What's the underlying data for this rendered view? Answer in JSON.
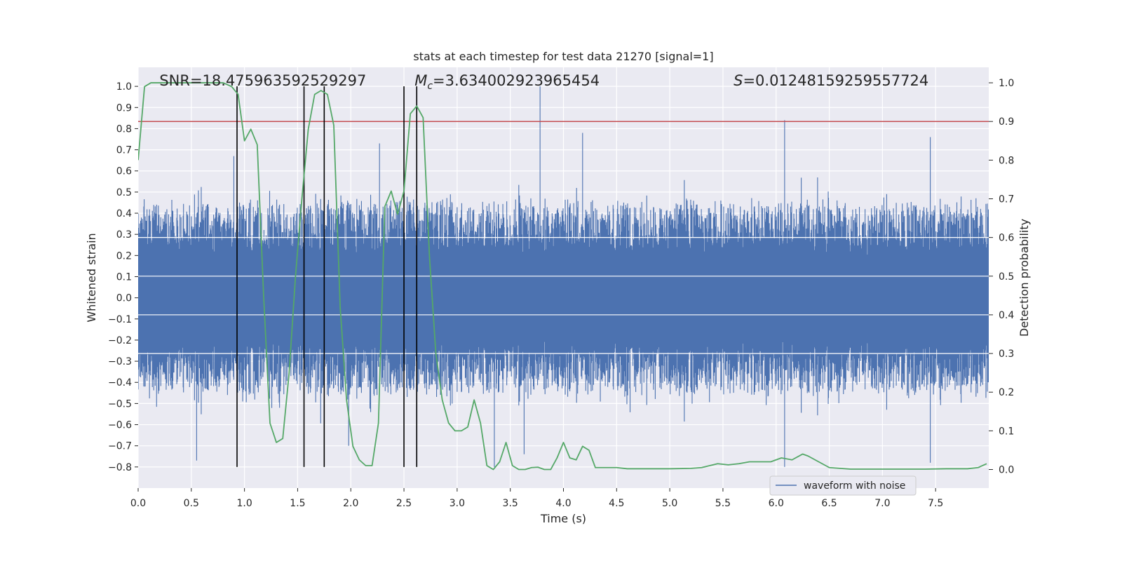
{
  "chart_data": {
    "type": "line",
    "title": "stats at each timestep for test data 21270 [signal=1]",
    "xlabel": "Time (s)",
    "ylabel": "Whitened strain",
    "y2label": "Detection probability",
    "xlim": [
      0.0,
      8.0
    ],
    "ylim": [
      -0.9,
      1.09
    ],
    "y2lim": [
      -0.048,
      1.04
    ],
    "grid": true,
    "legend": {
      "placement": "bottom-right",
      "entries": [
        "waveform with noise"
      ]
    },
    "x_ticks": [
      0.0,
      0.5,
      1.0,
      1.5,
      2.0,
      2.5,
      3.0,
      3.5,
      4.0,
      4.5,
      5.0,
      5.5,
      6.0,
      6.5,
      7.0,
      7.5
    ],
    "x_tick_labels": [
      "0.0",
      "0.5",
      "1.0",
      "1.5",
      "2.0",
      "2.5",
      "3.0",
      "3.5",
      "4.0",
      "4.5",
      "5.0",
      "5.5",
      "6.0",
      "6.5",
      "7.0",
      "7.5"
    ],
    "y_ticks": [
      1.0,
      0.9,
      0.8,
      0.7,
      0.6,
      0.5,
      0.4,
      0.3,
      0.2,
      0.1,
      0.0,
      -0.1,
      -0.2,
      -0.3,
      -0.4,
      -0.5,
      -0.6,
      -0.7,
      -0.8
    ],
    "y_tick_labels": [
      "1.0",
      "0.9",
      "0.8",
      "0.7",
      "0.6",
      "0.5",
      "0.4",
      "0.3",
      "0.2",
      "0.1",
      "0.0",
      "−0.1",
      "−0.2",
      "−0.3",
      "−0.4",
      "−0.5",
      "−0.6",
      "−0.7",
      "−0.8"
    ],
    "y2_ticks": [
      1.0,
      0.9,
      0.8,
      0.7,
      0.6,
      0.5,
      0.4,
      0.3,
      0.2,
      0.1,
      0.0
    ],
    "y2_tick_labels": [
      "1.0",
      "0.9",
      "0.8",
      "0.7",
      "0.6",
      "0.5",
      "0.4",
      "0.3",
      "0.2",
      "0.1",
      "0.0"
    ],
    "annotations": [
      {
        "label": "SNR",
        "value": "=18.475963592529297",
        "x": 0.2
      },
      {
        "label": "M",
        "sub": "c",
        "value": "=3.634002923965454",
        "x": 2.6
      },
      {
        "label": "S",
        "value": "=0.01248159259557724",
        "x": 5.6
      }
    ],
    "threshold_line": {
      "y2": 0.9,
      "color": "#c44e52"
    },
    "event_lines_x": [
      0.93,
      1.56,
      1.75,
      2.5,
      2.62
    ],
    "event_line_color": "#000000",
    "series": [
      {
        "name": "waveform with noise",
        "axis": "left",
        "color": "#4c72b0",
        "duration_s": 8.0,
        "envelope_typical": [
          -0.45,
          0.45
        ],
        "envelope_extremes": [
          -0.78,
          1.0
        ],
        "peaks": [
          {
            "x": 0.9,
            "y": 0.67
          },
          {
            "x": 2.27,
            "y": 0.73
          },
          {
            "x": 3.78,
            "y": 1.0
          },
          {
            "x": 4.18,
            "y": 0.78
          },
          {
            "x": 6.08,
            "y": 0.84
          },
          {
            "x": 7.45,
            "y": 0.76
          },
          {
            "x": 0.55,
            "y": -0.77
          },
          {
            "x": 3.35,
            "y": -0.8
          },
          {
            "x": 6.08,
            "y": -0.8
          },
          {
            "x": 7.45,
            "y": -0.78
          },
          {
            "x": 1.98,
            "y": -0.7
          },
          {
            "x": 3.63,
            "y": -0.74
          }
        ]
      },
      {
        "name": "detection probability",
        "axis": "right",
        "color": "#55a868",
        "x": [
          0.0,
          0.06,
          0.12,
          0.18,
          0.24,
          0.3,
          0.4,
          0.5,
          0.6,
          0.7,
          0.8,
          0.88,
          0.94,
          1.0,
          1.06,
          1.12,
          1.18,
          1.24,
          1.3,
          1.36,
          1.42,
          1.48,
          1.54,
          1.6,
          1.66,
          1.72,
          1.78,
          1.84,
          1.9,
          1.96,
          2.02,
          2.08,
          2.14,
          2.2,
          2.26,
          2.32,
          2.38,
          2.44,
          2.5,
          2.56,
          2.62,
          2.68,
          2.74,
          2.8,
          2.86,
          2.92,
          2.98,
          3.04,
          3.1,
          3.16,
          3.22,
          3.28,
          3.34,
          3.4,
          3.46,
          3.52,
          3.58,
          3.64,
          3.7,
          3.76,
          3.82,
          3.88,
          3.94,
          4.0,
          4.06,
          4.12,
          4.18,
          4.24,
          4.3,
          4.36,
          4.42,
          4.5,
          4.6,
          4.8,
          5.0,
          5.2,
          5.3,
          5.45,
          5.55,
          5.65,
          5.75,
          5.85,
          5.95,
          6.05,
          6.15,
          6.25,
          6.3,
          6.4,
          6.5,
          6.7,
          7.0,
          7.4,
          7.6,
          7.8,
          7.9,
          7.98
        ],
        "values": [
          0.8,
          0.99,
          1.0,
          1.0,
          1.0,
          1.0,
          1.0,
          1.0,
          1.0,
          1.0,
          1.0,
          0.99,
          0.97,
          0.85,
          0.88,
          0.84,
          0.45,
          0.12,
          0.07,
          0.08,
          0.25,
          0.5,
          0.7,
          0.88,
          0.97,
          0.98,
          0.97,
          0.89,
          0.42,
          0.18,
          0.06,
          0.025,
          0.01,
          0.01,
          0.12,
          0.68,
          0.72,
          0.66,
          0.72,
          0.92,
          0.94,
          0.91,
          0.55,
          0.3,
          0.18,
          0.12,
          0.1,
          0.1,
          0.11,
          0.18,
          0.12,
          0.01,
          0.0,
          0.02,
          0.07,
          0.01,
          0.0,
          0.0,
          0.005,
          0.006,
          0.0,
          0.0,
          0.03,
          0.07,
          0.03,
          0.025,
          0.06,
          0.05,
          0.005,
          0.005,
          0.005,
          0.005,
          0.002,
          0.002,
          0.002,
          0.003,
          0.005,
          0.015,
          0.012,
          0.015,
          0.02,
          0.02,
          0.02,
          0.03,
          0.025,
          0.04,
          0.035,
          0.02,
          0.005,
          0.001,
          0.001,
          0.001,
          0.002,
          0.002,
          0.005,
          0.015
        ]
      }
    ]
  }
}
